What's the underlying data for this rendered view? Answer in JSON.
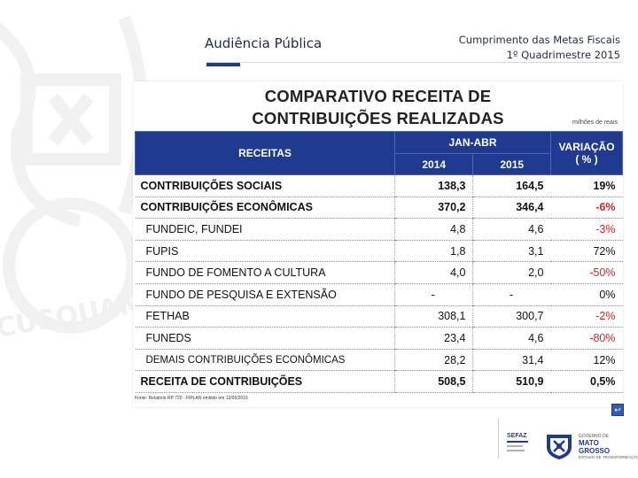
{
  "header": {
    "left_title": "Audiência Pública",
    "right_line1": "Cumprimento das Metas Fiscais",
    "right_line2": "1º Quadrimestre 2015"
  },
  "slide": {
    "title_line1": "COMPARATIVO RECEITA DE",
    "title_line2": "CONTRIBUIÇÕES  REALIZADAS",
    "unit": "milhões de reais",
    "source": "Fonte: Relatório RP 720 - FIPLAN emitido em 12/05/2015"
  },
  "table": {
    "col_receitas": "RECEITAS",
    "col_period": "JAN-ABR",
    "col_2014": "2014",
    "col_2015": "2015",
    "col_var_line1": "VARIAÇÃO",
    "col_var_line2": "( % )",
    "rows": [
      {
        "label": "CONTRIBUIÇÕES SOCIAIS",
        "v2014": "138,3",
        "v2015": "164,5",
        "var": "19%"
      },
      {
        "label": "CONTRIBUIÇÕES ECONÔMICAS",
        "v2014": "370,2",
        "v2015": "346,4",
        "var": "-6%"
      },
      {
        "label": "FUNDEIC, FUNDEI",
        "v2014": "4,8",
        "v2015": "4,6",
        "var": "-3%"
      },
      {
        "label": "FUPIS",
        "v2014": "1,8",
        "v2015": "3,1",
        "var": "72%"
      },
      {
        "label": "FUNDO DE FOMENTO A CULTURA",
        "v2014": "4,0",
        "v2015": "2,0",
        "var": "-50%"
      },
      {
        "label": "FUNDO DE PESQUISA E EXTENSÃO",
        "v2014": "-",
        "v2015": "-",
        "var": "0%"
      },
      {
        "label": "FETHAB",
        "v2014": "308,1",
        "v2015": "300,7",
        "var": "-2%"
      },
      {
        "label": "FUNEDS",
        "v2014": "23,4",
        "v2015": "4,6",
        "var": "-80%"
      },
      {
        "label": "DEMAIS CONTRIBUIÇÕES ECONÔMICAS",
        "v2014": "28,2",
        "v2015": "31,4",
        "var": "12%"
      },
      {
        "label": "RECEITA DE CONTRIBUIÇÕES",
        "v2014": "508,5",
        "v2015": "510,9",
        "var": "0,5%"
      }
    ]
  },
  "footer": {
    "sefaz": "SEFAZ",
    "gov_line1": "GOVERNO DE",
    "gov_line2": "MATO GROSSO",
    "gov_line3": "ESTADO DE TRANSFORMAÇÃO"
  },
  "watermark_text": "CUSQUAM",
  "colors": {
    "header_blue": "#1f3a8f",
    "negative_red": "#e02020",
    "accent": "#1f3a93"
  }
}
